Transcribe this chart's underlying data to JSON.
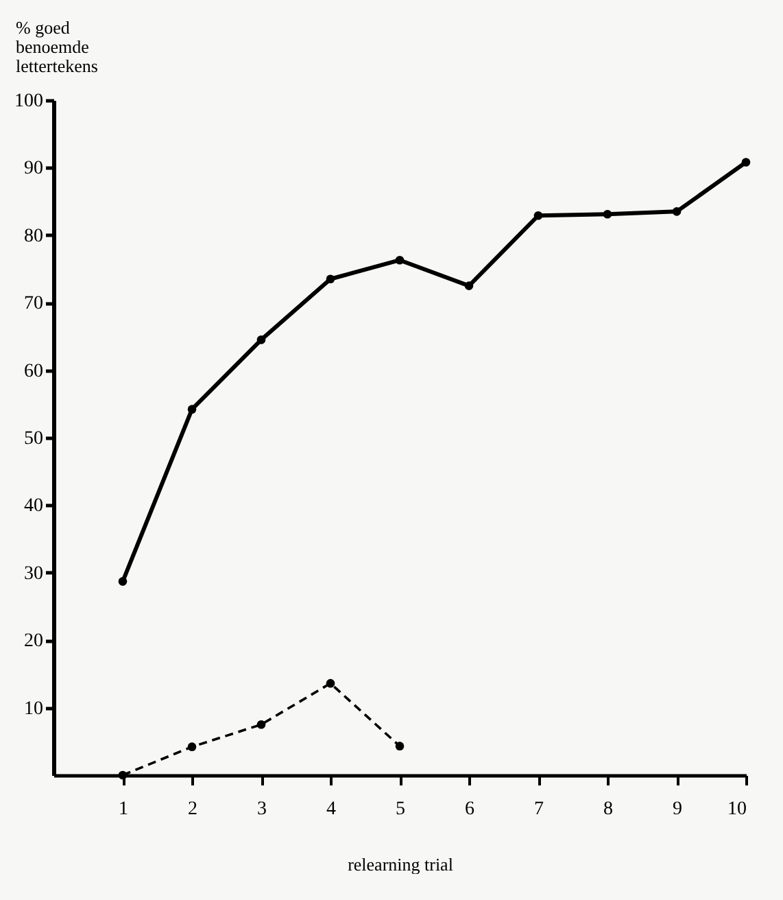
{
  "chart_data": {
    "type": "line",
    "ylabel": "% goed\nbenoemde\nlettertekens",
    "xlabel": "relearning trial",
    "x": [
      1,
      2,
      3,
      4,
      5,
      6,
      7,
      8,
      9,
      10
    ],
    "series": [
      {
        "color": "#000000",
        "line_style": "solid",
        "values": [
          28.7,
          54.2,
          64.5,
          73.5,
          76.3,
          72.5,
          82.9,
          83.1,
          83.5,
          90.8
        ]
      },
      {
        "color": "#000000",
        "line_style": "dashed",
        "x": [
          1,
          2,
          3,
          4,
          5
        ],
        "values": [
          0,
          4.2,
          7.5,
          13.6,
          4.3
        ]
      }
    ],
    "xlim": [
      0,
      10
    ],
    "xticks": [
      1,
      2,
      3,
      4,
      5,
      6,
      7,
      8,
      9,
      10
    ],
    "ylim": [
      0,
      100
    ],
    "yticks": [
      10,
      20,
      30,
      40,
      50,
      60,
      70,
      80,
      90,
      100
    ],
    "grid": false,
    "marker": "circle"
  }
}
